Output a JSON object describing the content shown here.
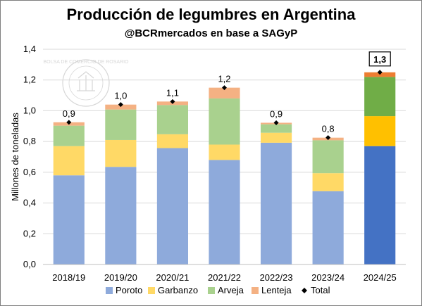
{
  "chart_data": {
    "type": "bar",
    "stacked": true,
    "title": "Producción de legumbres en Argentina",
    "subtitle": "@BCRmercados en base a SAGyP",
    "ylabel": "Millones de toneladas",
    "ylim": [
      0,
      1.4
    ],
    "yticks": [
      "0,0",
      "0,2",
      "0,4",
      "0,6",
      "0,8",
      "1,0",
      "1,2",
      "1,4"
    ],
    "categories": [
      "2018/19",
      "2019/20",
      "2020/21",
      "2021/22",
      "2022/23",
      "2023/24",
      "2024/25"
    ],
    "series": [
      {
        "name": "Poroto",
        "color": "#8eaadb",
        "highlight_color": "#4472c4",
        "values": [
          0.58,
          0.635,
          0.757,
          0.68,
          0.792,
          0.477,
          0.77
        ]
      },
      {
        "name": "Garbanzo",
        "color": "#ffd966",
        "highlight_color": "#ffc000",
        "values": [
          0.19,
          0.175,
          0.09,
          0.1,
          0.065,
          0.117,
          0.195
        ]
      },
      {
        "name": "Arveja",
        "color": "#a9d18e",
        "highlight_color": "#70ad47",
        "values": [
          0.133,
          0.198,
          0.19,
          0.3,
          0.055,
          0.214,
          0.255
        ]
      },
      {
        "name": "Lenteja",
        "color": "#f4b183",
        "highlight_color": "#ed7d31",
        "values": [
          0.022,
          0.032,
          0.023,
          0.07,
          0.01,
          0.017,
          0.03
        ]
      }
    ],
    "total": {
      "name": "Total",
      "values": [
        0.925,
        1.04,
        1.06,
        1.15,
        0.922,
        0.825,
        1.25
      ]
    },
    "total_labels": [
      "0,9",
      "1,0",
      "1,1",
      "1,2",
      "0,9",
      "0,8",
      "1,3"
    ],
    "highlighted_category": "2024/25",
    "legend_position": "bottom",
    "grid": true
  }
}
